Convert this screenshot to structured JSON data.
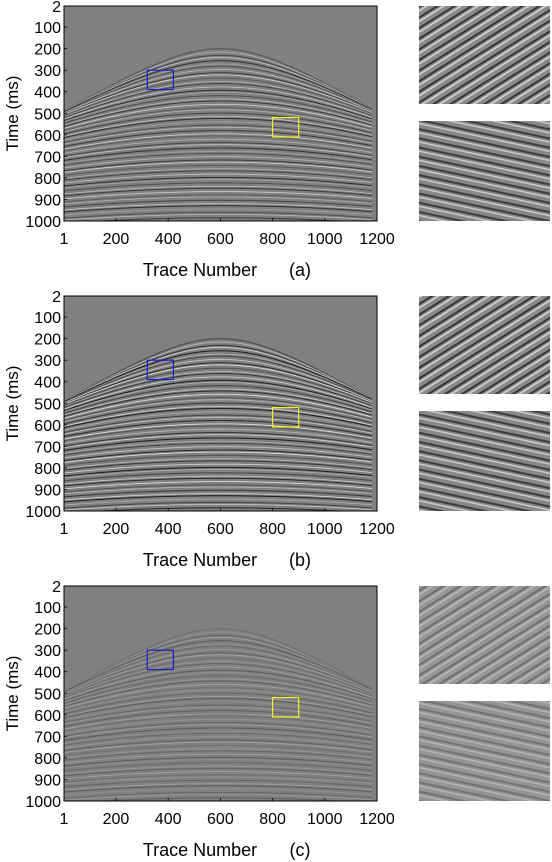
{
  "colors": {
    "seismic_background": "#808080",
    "box_1": "#1f1fbf",
    "box_2": "#f2f21a",
    "axis": "#000000"
  },
  "chart_data": [
    {
      "type": "heatmap",
      "panel_label": "(a)",
      "xlabel": "Trace Number",
      "ylabel": "Time (ms)",
      "x_ticks": [
        "1",
        "200",
        "400",
        "600",
        "800",
        "1000",
        "1200"
      ],
      "y_ticks": [
        "2",
        "100",
        "200",
        "300",
        "400",
        "500",
        "600",
        "700",
        "800",
        "900",
        "1000"
      ],
      "xlim": [
        1,
        1200
      ],
      "ylim": [
        2,
        1000
      ],
      "y_reversed": true,
      "colormap": "gray",
      "hyperbola_apex": {
        "trace": 600,
        "time_ms": 200
      },
      "zoom_boxes": [
        {
          "color": "blue",
          "trace_range": [
            320,
            420
          ],
          "time_range_ms": [
            300,
            390
          ]
        },
        {
          "color": "yellow",
          "trace_range": [
            800,
            900
          ],
          "time_range_ms": [
            520,
            610
          ]
        }
      ],
      "insets": [
        "zoom-blue-box",
        "zoom-yellow-box"
      ]
    },
    {
      "type": "heatmap",
      "panel_label": "(b)",
      "xlabel": "Trace Number",
      "ylabel": "Time (ms)",
      "x_ticks": [
        "1",
        "200",
        "400",
        "600",
        "800",
        "1000",
        "1200"
      ],
      "y_ticks": [
        "2",
        "100",
        "200",
        "300",
        "400",
        "500",
        "600",
        "700",
        "800",
        "900",
        "1000"
      ],
      "xlim": [
        1,
        1200
      ],
      "ylim": [
        2,
        1000
      ],
      "y_reversed": true,
      "colormap": "gray",
      "hyperbola_apex": {
        "trace": 600,
        "time_ms": 200
      },
      "zoom_boxes": [
        {
          "color": "blue",
          "trace_range": [
            320,
            420
          ],
          "time_range_ms": [
            300,
            390
          ]
        },
        {
          "color": "yellow",
          "trace_range": [
            800,
            900
          ],
          "time_range_ms": [
            520,
            610
          ]
        }
      ],
      "insets": [
        "zoom-blue-box",
        "zoom-yellow-box"
      ]
    },
    {
      "type": "heatmap",
      "panel_label": "(c)",
      "xlabel": "Trace Number",
      "ylabel": "Time (ms)",
      "x_ticks": [
        "1",
        "200",
        "400",
        "600",
        "800",
        "1000",
        "1200"
      ],
      "y_ticks": [
        "2",
        "100",
        "200",
        "300",
        "400",
        "500",
        "600",
        "700",
        "800",
        "900",
        "1000"
      ],
      "xlim": [
        1,
        1200
      ],
      "ylim": [
        2,
        1000
      ],
      "y_reversed": true,
      "colormap": "gray",
      "hyperbola_apex": {
        "trace": 600,
        "time_ms": 200
      },
      "zoom_boxes": [
        {
          "color": "blue",
          "trace_range": [
            320,
            420
          ],
          "time_range_ms": [
            300,
            390
          ]
        },
        {
          "color": "yellow",
          "trace_range": [
            800,
            900
          ],
          "time_range_ms": [
            520,
            610
          ]
        }
      ],
      "insets": [
        "zoom-blue-box",
        "zoom-yellow-box"
      ]
    }
  ]
}
